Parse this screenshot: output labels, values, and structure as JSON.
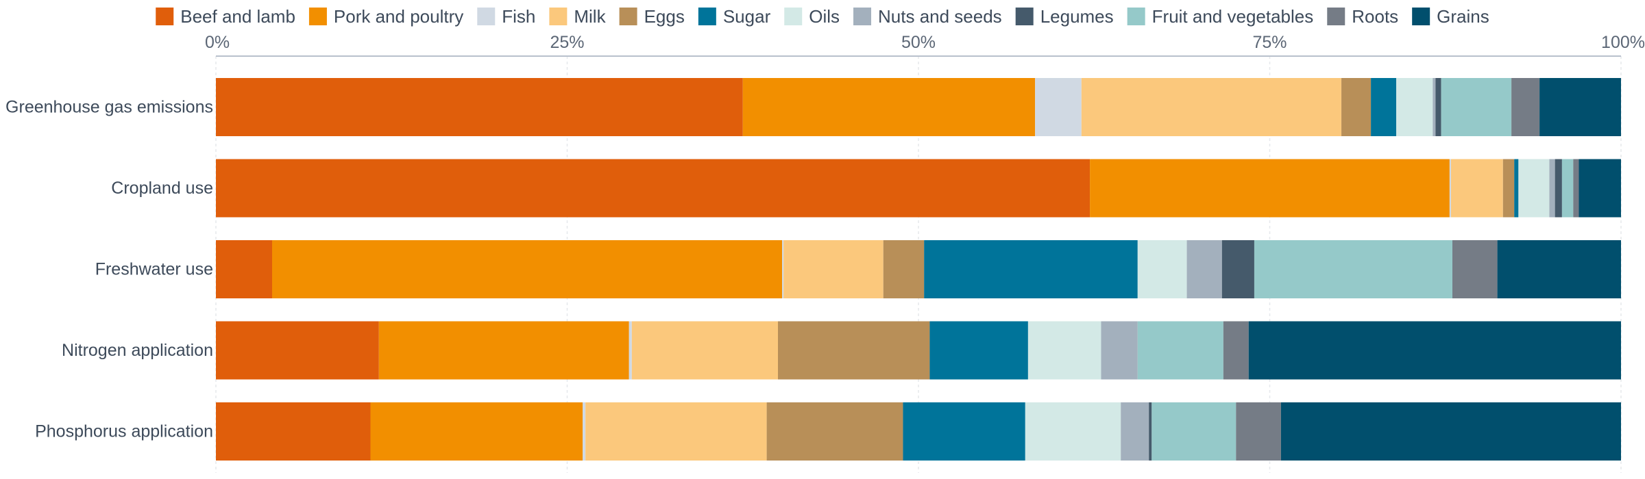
{
  "chart_data": {
    "type": "bar",
    "orientation": "horizontal",
    "stacked": "percent",
    "categories": [
      "Greenhouse gas emissions",
      "Cropland use",
      "Freshwater use",
      "Nitrogen application",
      "Phosphorus application"
    ],
    "xlim": [
      0,
      100
    ],
    "x_ticks": [
      "0%",
      "25%",
      "50%",
      "75%",
      "100%"
    ],
    "x_tick_values": [
      0,
      25,
      50,
      75,
      100
    ],
    "x_axis_position": "top",
    "grid": true,
    "legend_position": "top",
    "series": [
      {
        "name": "Beef and lamb",
        "color": "#e05e0b",
        "values": [
          37.5,
          62.2,
          4.0,
          11.6,
          11.0
        ]
      },
      {
        "name": "Pork and poultry",
        "color": "#f28f00",
        "values": [
          20.8,
          25.6,
          36.3,
          17.8,
          15.1
        ]
      },
      {
        "name": "Fish",
        "color": "#d0d9e3",
        "values": [
          3.3,
          0.1,
          0.1,
          0.2,
          0.2
        ]
      },
      {
        "name": "Milk",
        "color": "#fbc87c",
        "values": [
          18.5,
          3.7,
          7.1,
          10.4,
          12.9
        ]
      },
      {
        "name": "Eggs",
        "color": "#b88f58",
        "values": [
          2.1,
          0.8,
          2.9,
          10.8,
          9.7
        ]
      },
      {
        "name": "Sugar",
        "color": "#00749a",
        "values": [
          1.8,
          0.3,
          15.2,
          7.0,
          8.7
        ]
      },
      {
        "name": "Oils",
        "color": "#d3e9e6",
        "values": [
          2.6,
          2.2,
          3.5,
          5.2,
          6.8
        ]
      },
      {
        "name": "Nuts and seeds",
        "color": "#a3b0bd",
        "values": [
          0.2,
          0.4,
          2.5,
          2.6,
          2.0
        ]
      },
      {
        "name": "Legumes",
        "color": "#455a6b",
        "values": [
          0.4,
          0.5,
          2.3,
          0.0,
          0.2
        ]
      },
      {
        "name": "Fruit and vegetables",
        "color": "#95c9c9",
        "values": [
          5.0,
          0.8,
          14.1,
          6.1,
          6.0
        ]
      },
      {
        "name": "Roots",
        "color": "#757c86",
        "values": [
          2.0,
          0.4,
          3.2,
          1.8,
          3.2
        ]
      },
      {
        "name": "Grains",
        "color": "#014f6d",
        "values": [
          5.8,
          3.0,
          8.8,
          26.5,
          24.2
        ]
      }
    ]
  }
}
